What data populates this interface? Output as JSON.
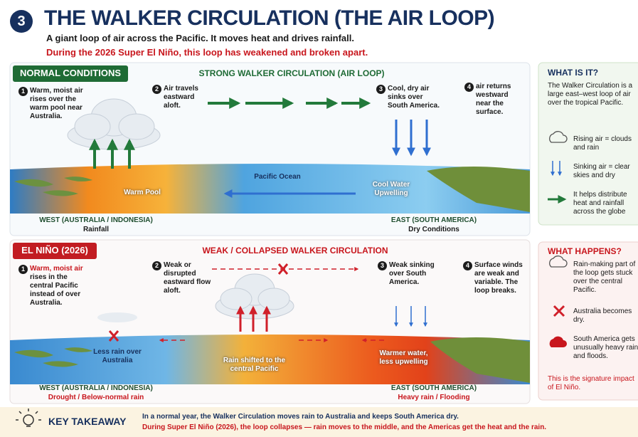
{
  "header": {
    "number": "3",
    "title": "THE WALKER CIRCULATION (THE AIR LOOP)",
    "subtitle": "A giant loop of air across the Pacific. It moves heat and drives rainfall.",
    "alert": "During the 2026 Super El Niño, this loop has weakened and broken apart."
  },
  "panels": [
    {
      "badge": "NORMAL CONDITIONS",
      "heading": "STRONG WALKER CIRCULATION (AIR LOOP)",
      "steps": [
        {
          "number": "1",
          "text": "Warm, moist air rises over the warm pool near Australia."
        },
        {
          "number": "2",
          "text": "Air travels eastward aloft."
        },
        {
          "number": "3",
          "text": "Cool, dry air sinks over South America."
        },
        {
          "number": "4",
          "text": "air returns westward near the surface."
        }
      ],
      "labels": [
        "Pacific Ocean",
        "Warm Pool",
        "Cool Water Upwelling"
      ],
      "west": {
        "title": "WEST (AUSTRALIA / INDONESIA)",
        "note": "Rainfall"
      },
      "east": {
        "title": "EAST (SOUTH AMERICA)",
        "note": "Dry Conditions"
      }
    },
    {
      "badge": "EL NIÑO (2026)",
      "heading": "WEAK / COLLAPSED WALKER CIRCULATION",
      "steps": [
        {
          "number": "1",
          "highlight": "Warm, moist air",
          "text": "rises in the central Pacific instead of over Australia."
        },
        {
          "number": "2",
          "text": "Weak or disrupted eastward flow aloft."
        },
        {
          "number": "3",
          "text": "Weak sinking over South America."
        },
        {
          "number": "4",
          "text": "Surface winds are weak and variable. The loop breaks."
        }
      ],
      "labels": [
        "Less rain over Australia",
        "Rain shifted to the central Pacific",
        "Warmer water, less upwelling"
      ],
      "west": {
        "title": "WEST (AUSTRALIA / INDONESIA)",
        "note": "Drought / Below-normal rain"
      },
      "east": {
        "title": "EAST (SOUTH AMERICA)",
        "note": "Heavy rain / Flooding"
      }
    }
  ],
  "sidebars": [
    {
      "title": "WHAT IS IT?",
      "intro": "The Walker Circulation is a large east–west loop of air over the tropical Pacific.",
      "items": [
        "Rising air = clouds and rain",
        "Sinking air = clear skies and dry",
        "It helps distribute heat and rainfall across the globe"
      ]
    },
    {
      "title": "WHAT HAPPENS?",
      "items": [
        "Rain-making part of the loop gets stuck over the central Pacific.",
        "Australia becomes dry.",
        "South America gets unusually heavy rain and floods."
      ],
      "footer": "This is the signature impact of El Niño."
    }
  ],
  "takeaway": {
    "title": "KEY TAKEAWAY",
    "lines": [
      "In a normal year, the Walker Circulation moves rain to Australia and keeps South America dry.",
      "During Super El Niño (2026), the loop collapses — rain moves to the middle, and the Americas get the heat and the rain."
    ]
  }
}
